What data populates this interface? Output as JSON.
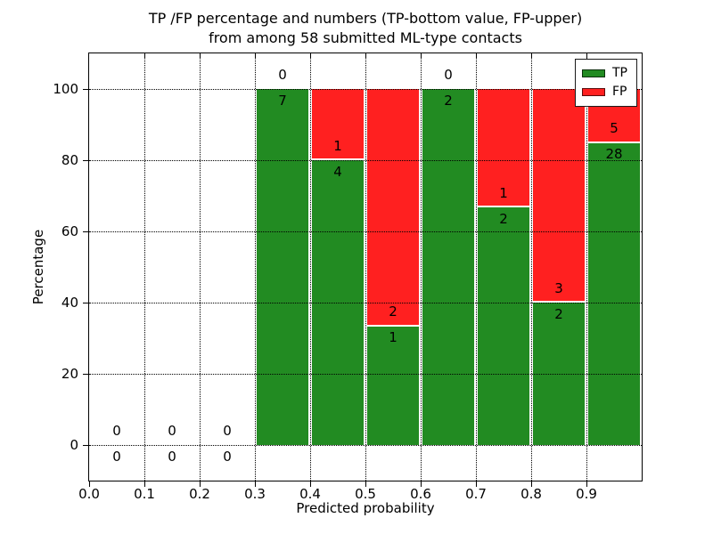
{
  "title": {
    "line1": "TP /FP percentage and numbers (TP-bottom value, FP-upper)",
    "line2": "from among 58 submitted ML-type contacts"
  },
  "chart_data": {
    "type": "bar",
    "stacked": true,
    "title": "TP /FP percentage and numbers (TP-bottom value, FP-upper)\nfrom among 58 submitted ML-type contacts",
    "xlabel": "Predicted probability",
    "ylabel": "Percentage",
    "xlim": [
      0.0,
      1.0
    ],
    "ylim": [
      -10,
      110
    ],
    "grid": true,
    "total_contacts": 58,
    "xticks": [
      "0.0",
      "0.1",
      "0.2",
      "0.3",
      "0.4",
      "0.5",
      "0.6",
      "0.7",
      "0.8",
      "0.9"
    ],
    "yticks": [
      "0",
      "20",
      "40",
      "60",
      "80",
      "100"
    ],
    "bin_starts": [
      0.0,
      0.1,
      0.2,
      0.3,
      0.4,
      0.5,
      0.6,
      0.7,
      0.8,
      0.9
    ],
    "bin_width": 0.1,
    "series": [
      {
        "name": "TP",
        "counts": [
          0,
          0,
          0,
          7,
          4,
          1,
          2,
          2,
          2,
          28
        ],
        "pct": [
          0,
          0,
          0,
          100,
          80,
          33.33,
          100,
          66.67,
          40,
          84.85
        ]
      },
      {
        "name": "FP",
        "counts": [
          0,
          0,
          0,
          0,
          1,
          2,
          0,
          1,
          3,
          5
        ],
        "pct": [
          0,
          0,
          0,
          0,
          20,
          66.67,
          0,
          33.33,
          60,
          15.15
        ]
      }
    ],
    "legend": {
      "position": "upper right",
      "items": [
        {
          "label": "TP",
          "color": "#228B22"
        },
        {
          "label": "FP",
          "color": "#FF2020"
        }
      ]
    }
  },
  "colors": {
    "tp": "#228B22",
    "fp": "#FF2020",
    "grid": "#000000",
    "text": "#000000",
    "background": "#ffffff"
  }
}
